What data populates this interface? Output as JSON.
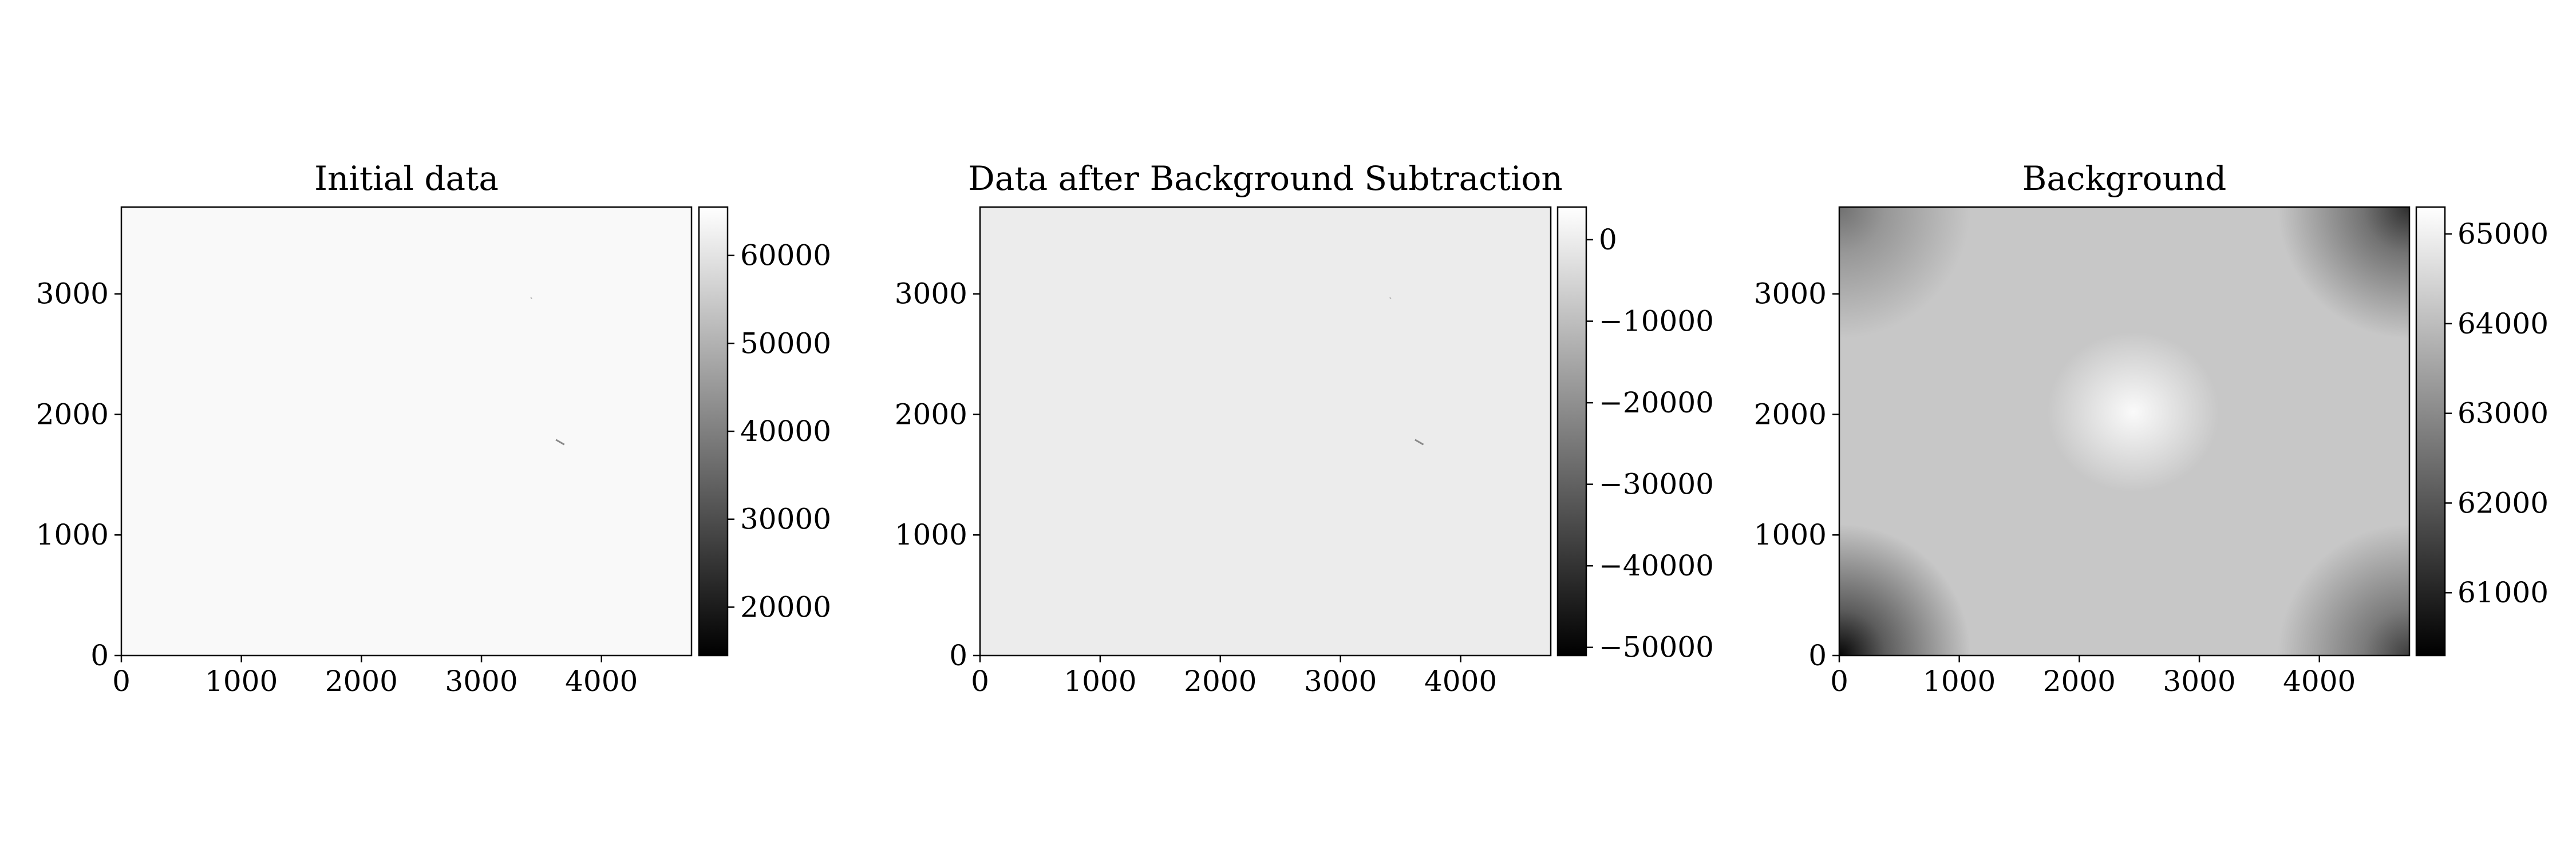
{
  "chart_data": [
    {
      "type": "heatmap",
      "title": "Initial data",
      "x_ticks": [
        0,
        1000,
        2000,
        3000,
        4000
      ],
      "y_ticks": [
        0,
        1000,
        2000,
        3000
      ],
      "xlim": [
        0,
        4750
      ],
      "ylim": [
        0,
        3720
      ],
      "colorbar": {
        "vmin": 14500,
        "vmax": 65500,
        "ticks": [
          20000,
          30000,
          40000,
          50000,
          60000
        ],
        "tick_labels": [
          "20000",
          "30000",
          "40000",
          "50000",
          "60000"
        ]
      },
      "colormap": "gray",
      "image_level": 64200,
      "features": [
        {
          "kind": "streak",
          "x": [
            3620,
            3690
          ],
          "y": [
            1790,
            1750
          ]
        },
        {
          "kind": "speck",
          "x": [
            3410,
            3420
          ],
          "y": [
            2970,
            2960
          ]
        }
      ]
    },
    {
      "type": "heatmap",
      "title": "Data after Background Subtraction",
      "x_ticks": [
        0,
        1000,
        2000,
        3000,
        4000
      ],
      "y_ticks": [
        0,
        1000,
        2000,
        3000
      ],
      "xlim": [
        0,
        4750
      ],
      "ylim": [
        0,
        3720
      ],
      "colorbar": {
        "vmin": -51000,
        "vmax": 4000,
        "ticks": [
          0,
          -10000,
          -20000,
          -30000,
          -40000,
          -50000
        ],
        "tick_labels": [
          "0",
          "−10000",
          "−20000",
          "−30000",
          "−40000",
          "−50000"
        ]
      },
      "colormap": "gray",
      "image_level": 0,
      "features": [
        {
          "kind": "streak",
          "x": [
            3620,
            3690
          ],
          "y": [
            1790,
            1750
          ]
        },
        {
          "kind": "speck",
          "x": [
            3410,
            3420
          ],
          "y": [
            2970,
            2960
          ]
        }
      ]
    },
    {
      "type": "heatmap",
      "title": "Background",
      "x_ticks": [
        0,
        1000,
        2000,
        3000,
        4000
      ],
      "y_ticks": [
        0,
        1000,
        2000,
        3000
      ],
      "xlim": [
        0,
        4750
      ],
      "ylim": [
        0,
        3720
      ],
      "colorbar": {
        "vmin": 60300,
        "vmax": 65300,
        "ticks": [
          61000,
          62000,
          63000,
          64000,
          65000
        ],
        "tick_labels": [
          "61000",
          "62000",
          "63000",
          "64000",
          "65000"
        ]
      },
      "colormap": "gray",
      "image_level": 64200,
      "features": [
        {
          "kind": "bright_spot",
          "x": 2450,
          "y": 2020,
          "level": 65200
        },
        {
          "kind": "dark_corner",
          "x": 0,
          "y": 0,
          "level": 60400
        },
        {
          "kind": "dark_corner",
          "x": 4750,
          "y": 0,
          "level": 61500
        },
        {
          "kind": "dark_corner",
          "x": 0,
          "y": 3720,
          "level": 62500
        },
        {
          "kind": "dark_corner",
          "x": 4750,
          "y": 3720,
          "level": 61200
        }
      ]
    }
  ]
}
